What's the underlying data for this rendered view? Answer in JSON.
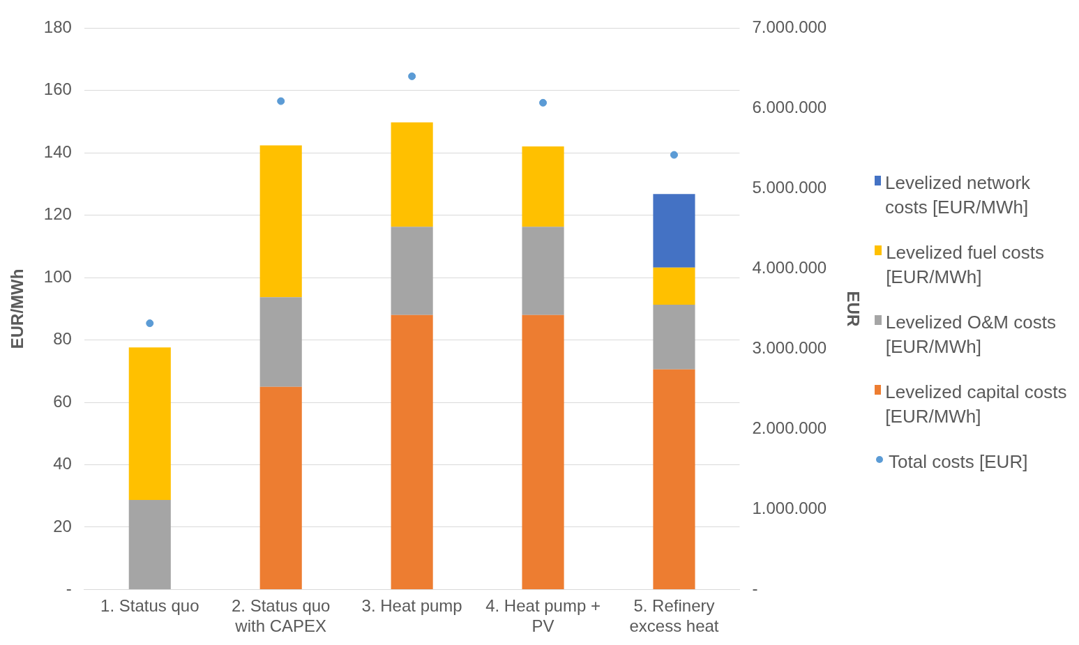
{
  "chart_data": {
    "type": "bar",
    "stacked": true,
    "ylabel": "EUR/MWh",
    "y2label": "EUR",
    "categories": [
      "1. Status quo",
      "2. Status quo with CAPEX",
      "3. Heat pump",
      "4. Heat pump + PV",
      "5. Refinery excess heat"
    ],
    "series": [
      {
        "name": "Levelized capital costs [EUR/MWh]",
        "color": "#ed7d31",
        "values": [
          0,
          65,
          88,
          88,
          70.6
        ]
      },
      {
        "name": "Levelized O&M costs [EUR/MWh]",
        "color": "#a5a5a5",
        "values": [
          28.7,
          28.7,
          28.3,
          28.3,
          20.7
        ]
      },
      {
        "name": "Levelized fuel costs [EUR/MWh]",
        "color": "#ffc000",
        "values": [
          48.9,
          48.7,
          33.5,
          25.8,
          11.9
        ]
      },
      {
        "name": "Levelized network costs [EUR/MWh]",
        "color": "#4472c4",
        "values": [
          0,
          0,
          0,
          0,
          23.6
        ]
      },
      {
        "name": "Total costs [EUR]",
        "type": "scatter",
        "axis": "y2",
        "marker": "circle",
        "color": "#5b9bd5",
        "values": [
          3320000,
          6090000,
          6400000,
          6070000,
          5420000
        ]
      }
    ],
    "ylim": [
      0,
      180
    ],
    "yticks": [
      {
        "value": 0,
        "label": "-"
      },
      20,
      40,
      60,
      80,
      100,
      120,
      140,
      160,
      180
    ],
    "y2lim": [
      0,
      7000000
    ],
    "y2ticks": [
      {
        "value": 0,
        "label": "-"
      },
      {
        "value": 1000000,
        "label": "1.000.000"
      },
      {
        "value": 2000000,
        "label": "2.000.000"
      },
      {
        "value": 3000000,
        "label": "3.000.000"
      },
      {
        "value": 4000000,
        "label": "4.000.000"
      },
      {
        "value": 5000000,
        "label": "5.000.000"
      },
      {
        "value": 6000000,
        "label": "6.000.000"
      },
      {
        "value": 7000000,
        "label": "7.000.000"
      }
    ],
    "grid": "y",
    "legend": "right"
  }
}
